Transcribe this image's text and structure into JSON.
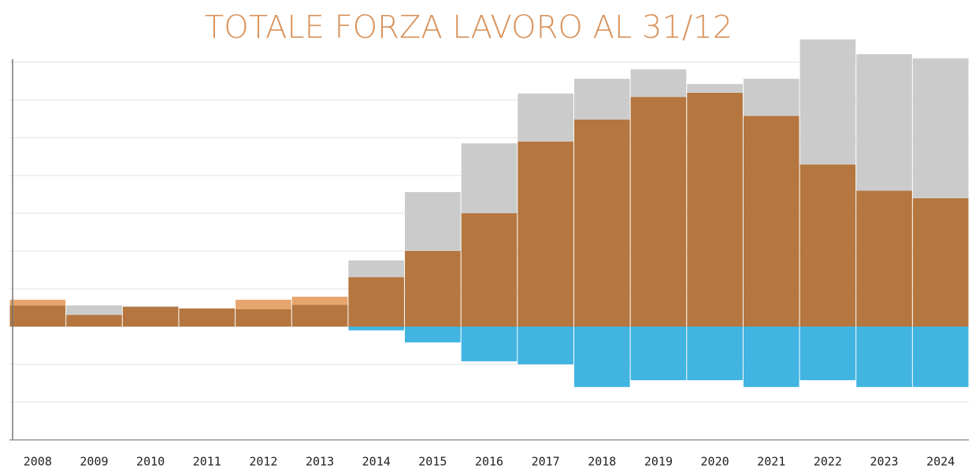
{
  "chart_data": {
    "type": "stacked-bar",
    "title": "TOTALE FORZA LAVORO AL 31/12",
    "categories": [
      "2008",
      "2009",
      "2010",
      "2011",
      "2012",
      "2013",
      "2014",
      "2015",
      "2016",
      "2017",
      "2018",
      "2019",
      "2020",
      "2021",
      "2022",
      "2023",
      "2024"
    ],
    "series": [
      {
        "color": "#b5773f",
        "values": [
          5.6,
          3.1,
          5.2,
          4.8,
          4.6,
          5.8,
          13.1,
          20,
          30,
          49,
          54.8,
          60.8,
          61.9,
          55.8,
          42.9,
          36,
          34
        ]
      },
      {
        "color": "#e6a66e",
        "values": [
          1.5,
          0,
          0,
          0,
          2.5,
          2.1,
          0,
          0,
          0,
          0,
          0,
          0,
          0,
          0,
          0,
          0,
          0
        ]
      },
      {
        "color": "#cbcbcb",
        "values": [
          0,
          2.5,
          0.2,
          0,
          0,
          0,
          4.4,
          15.6,
          18.5,
          12.7,
          10.8,
          7.3,
          2.3,
          9.8,
          33.1,
          36.1,
          37
        ]
      },
      {
        "color": "#41b4e2",
        "values": [
          0,
          0,
          0,
          0,
          0,
          0,
          -1,
          -4.2,
          -9.2,
          -10,
          -16,
          -14.2,
          -14.2,
          -16,
          -14.2,
          -16,
          -16
        ]
      }
    ],
    "ylim": [
      -30,
      80
    ],
    "yticks": [
      -30,
      -20,
      -10,
      0,
      10,
      20,
      30,
      40,
      50,
      60,
      70
    ],
    "grid": true
  }
}
